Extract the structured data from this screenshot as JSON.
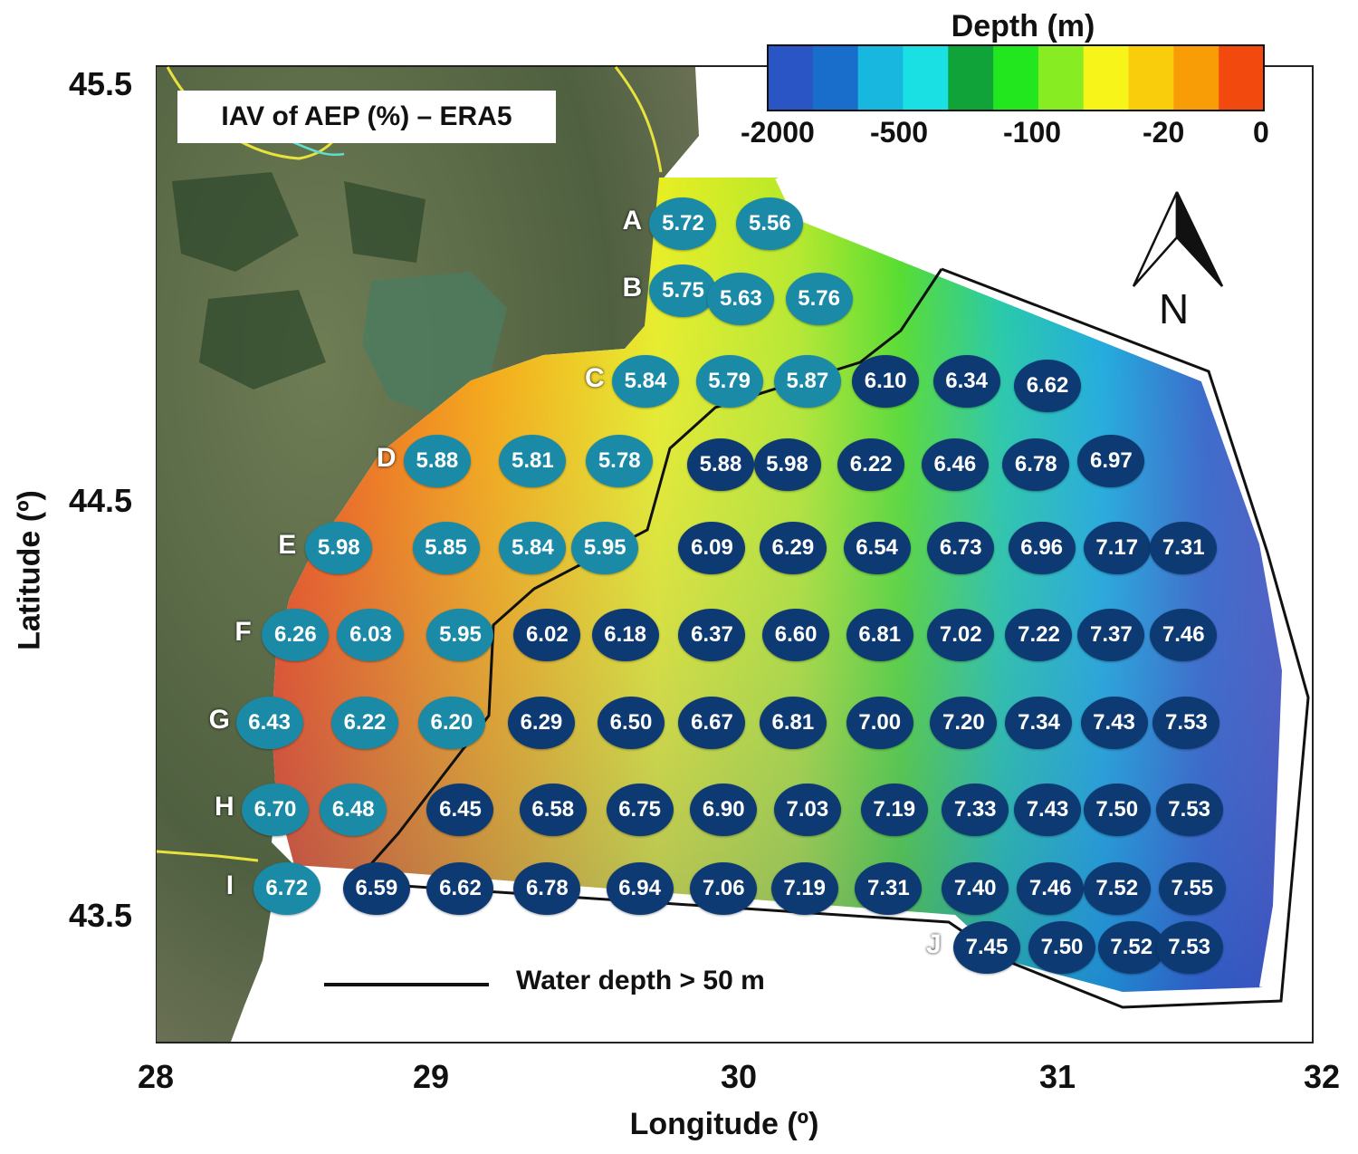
{
  "map": {
    "title": "IAV of AEP (%) – ERA5",
    "xlabel": "Longitude (º)",
    "ylabel": "Latitude (º)",
    "x_ticks": [
      "28",
      "29",
      "30",
      "31",
      "32"
    ],
    "y_ticks": [
      "45.5",
      "44.5",
      "43.5"
    ],
    "north_label": "N",
    "scale_line_label": "Water depth > 50 m"
  },
  "legend": {
    "title": "Depth (m)",
    "labels": [
      "-2000",
      "-500",
      "-100",
      "-20",
      "0"
    ],
    "colors": [
      "#2a55c4",
      "#1a6ecb",
      "#17b7df",
      "#1ae0e4",
      "#0fa33a",
      "#22e61e",
      "#88ec23",
      "#f7f41a",
      "#f9cc0c",
      "#f89d06",
      "#f24a0e"
    ]
  },
  "colors": {
    "shallow_marker": "#1a8aa6",
    "deep_marker": "#0d3a72",
    "land": "#5c6b47",
    "coast_line": "#e8e23c"
  },
  "chart_data": {
    "type": "scatter",
    "title": "IAV of AEP (%) – ERA5",
    "xlabel": "Longitude (º)",
    "ylabel": "Latitude (º)",
    "xlim": [
      28,
      32
    ],
    "ylim": [
      43.2,
      45.5
    ],
    "rows": [
      {
        "label": "A",
        "points": [
          {
            "lon": 29.82,
            "lat": 45.16,
            "value": "5.72",
            "deep": false
          },
          {
            "lon": 30.12,
            "lat": 45.16,
            "value": "5.56",
            "deep": false
          }
        ]
      },
      {
        "label": "B",
        "points": [
          {
            "lon": 29.82,
            "lat": 45.0,
            "value": "5.75",
            "deep": false
          },
          {
            "lon": 30.02,
            "lat": 44.98,
            "value": "5.63",
            "deep": false
          },
          {
            "lon": 30.29,
            "lat": 44.98,
            "value": "5.76",
            "deep": false
          }
        ]
      },
      {
        "label": "C",
        "points": [
          {
            "lon": 29.69,
            "lat": 44.78,
            "value": "5.84",
            "deep": false
          },
          {
            "lon": 29.98,
            "lat": 44.78,
            "value": "5.79",
            "deep": false
          },
          {
            "lon": 30.25,
            "lat": 44.78,
            "value": "5.87",
            "deep": false
          },
          {
            "lon": 30.52,
            "lat": 44.78,
            "value": "6.10",
            "deep": true
          },
          {
            "lon": 30.8,
            "lat": 44.78,
            "value": "6.34",
            "deep": true
          },
          {
            "lon": 31.08,
            "lat": 44.77,
            "value": "6.62",
            "deep": true
          }
        ]
      },
      {
        "label": "D",
        "points": [
          {
            "lon": 28.97,
            "lat": 44.59,
            "value": "5.88",
            "deep": false
          },
          {
            "lon": 29.3,
            "lat": 44.59,
            "value": "5.81",
            "deep": false
          },
          {
            "lon": 29.6,
            "lat": 44.59,
            "value": "5.78",
            "deep": false
          },
          {
            "lon": 29.95,
            "lat": 44.58,
            "value": "5.88",
            "deep": true
          },
          {
            "lon": 30.18,
            "lat": 44.58,
            "value": "5.98",
            "deep": true
          },
          {
            "lon": 30.47,
            "lat": 44.58,
            "value": "6.22",
            "deep": true
          },
          {
            "lon": 30.76,
            "lat": 44.58,
            "value": "6.46",
            "deep": true
          },
          {
            "lon": 31.04,
            "lat": 44.58,
            "value": "6.78",
            "deep": true
          },
          {
            "lon": 31.3,
            "lat": 44.59,
            "value": "6.97",
            "deep": true
          }
        ]
      },
      {
        "label": "E",
        "points": [
          {
            "lon": 28.63,
            "lat": 44.38,
            "value": "5.98",
            "deep": false
          },
          {
            "lon": 29.0,
            "lat": 44.38,
            "value": "5.85",
            "deep": false
          },
          {
            "lon": 29.3,
            "lat": 44.38,
            "value": "5.84",
            "deep": false
          },
          {
            "lon": 29.55,
            "lat": 44.38,
            "value": "5.95",
            "deep": false
          },
          {
            "lon": 29.92,
            "lat": 44.38,
            "value": "6.09",
            "deep": true
          },
          {
            "lon": 30.2,
            "lat": 44.38,
            "value": "6.29",
            "deep": true
          },
          {
            "lon": 30.49,
            "lat": 44.38,
            "value": "6.54",
            "deep": true
          },
          {
            "lon": 30.78,
            "lat": 44.38,
            "value": "6.73",
            "deep": true
          },
          {
            "lon": 31.06,
            "lat": 44.38,
            "value": "6.96",
            "deep": true
          },
          {
            "lon": 31.32,
            "lat": 44.38,
            "value": "7.17",
            "deep": true
          },
          {
            "lon": 31.55,
            "lat": 44.38,
            "value": "7.31",
            "deep": true
          }
        ]
      },
      {
        "label": "F",
        "points": [
          {
            "lon": 28.48,
            "lat": 44.17,
            "value": "6.26",
            "deep": false
          },
          {
            "lon": 28.74,
            "lat": 44.17,
            "value": "6.03",
            "deep": false
          },
          {
            "lon": 29.05,
            "lat": 44.17,
            "value": "5.95",
            "deep": false
          },
          {
            "lon": 29.35,
            "lat": 44.17,
            "value": "6.02",
            "deep": true
          },
          {
            "lon": 29.62,
            "lat": 44.17,
            "value": "6.18",
            "deep": true
          },
          {
            "lon": 29.92,
            "lat": 44.17,
            "value": "6.37",
            "deep": true
          },
          {
            "lon": 30.21,
            "lat": 44.17,
            "value": "6.60",
            "deep": true
          },
          {
            "lon": 30.5,
            "lat": 44.17,
            "value": "6.81",
            "deep": true
          },
          {
            "lon": 30.78,
            "lat": 44.17,
            "value": "7.02",
            "deep": true
          },
          {
            "lon": 31.05,
            "lat": 44.17,
            "value": "7.22",
            "deep": true
          },
          {
            "lon": 31.3,
            "lat": 44.17,
            "value": "7.37",
            "deep": true
          },
          {
            "lon": 31.55,
            "lat": 44.17,
            "value": "7.46",
            "deep": true
          }
        ]
      },
      {
        "label": "G",
        "points": [
          {
            "lon": 28.39,
            "lat": 43.96,
            "value": "6.43",
            "deep": false
          },
          {
            "lon": 28.72,
            "lat": 43.96,
            "value": "6.22",
            "deep": false
          },
          {
            "lon": 29.02,
            "lat": 43.96,
            "value": "6.20",
            "deep": false
          },
          {
            "lon": 29.33,
            "lat": 43.96,
            "value": "6.29",
            "deep": true
          },
          {
            "lon": 29.64,
            "lat": 43.96,
            "value": "6.50",
            "deep": true
          },
          {
            "lon": 29.92,
            "lat": 43.96,
            "value": "6.67",
            "deep": true
          },
          {
            "lon": 30.2,
            "lat": 43.96,
            "value": "6.81",
            "deep": true
          },
          {
            "lon": 30.5,
            "lat": 43.96,
            "value": "7.00",
            "deep": true
          },
          {
            "lon": 30.79,
            "lat": 43.96,
            "value": "7.20",
            "deep": true
          },
          {
            "lon": 31.05,
            "lat": 43.96,
            "value": "7.34",
            "deep": true
          },
          {
            "lon": 31.31,
            "lat": 43.96,
            "value": "7.43",
            "deep": true
          },
          {
            "lon": 31.56,
            "lat": 43.96,
            "value": "7.53",
            "deep": true
          }
        ]
      },
      {
        "label": "H",
        "points": [
          {
            "lon": 28.41,
            "lat": 43.75,
            "value": "6.70",
            "deep": false
          },
          {
            "lon": 28.68,
            "lat": 43.75,
            "value": "6.48",
            "deep": false
          },
          {
            "lon": 29.05,
            "lat": 43.75,
            "value": "6.45",
            "deep": true
          },
          {
            "lon": 29.37,
            "lat": 43.75,
            "value": "6.58",
            "deep": true
          },
          {
            "lon": 29.67,
            "lat": 43.75,
            "value": "6.75",
            "deep": true
          },
          {
            "lon": 29.96,
            "lat": 43.75,
            "value": "6.90",
            "deep": true
          },
          {
            "lon": 30.25,
            "lat": 43.75,
            "value": "7.03",
            "deep": true
          },
          {
            "lon": 30.55,
            "lat": 43.75,
            "value": "7.19",
            "deep": true
          },
          {
            "lon": 30.83,
            "lat": 43.75,
            "value": "7.33",
            "deep": true
          },
          {
            "lon": 31.08,
            "lat": 43.75,
            "value": "7.43",
            "deep": true
          },
          {
            "lon": 31.32,
            "lat": 43.75,
            "value": "7.50",
            "deep": true
          },
          {
            "lon": 31.57,
            "lat": 43.75,
            "value": "7.53",
            "deep": true
          }
        ]
      },
      {
        "label": "I",
        "points": [
          {
            "lon": 28.45,
            "lat": 43.56,
            "value": "6.72",
            "deep": false
          },
          {
            "lon": 28.76,
            "lat": 43.56,
            "value": "6.59",
            "deep": true
          },
          {
            "lon": 29.05,
            "lat": 43.56,
            "value": "6.62",
            "deep": true
          },
          {
            "lon": 29.35,
            "lat": 43.56,
            "value": "6.78",
            "deep": true
          },
          {
            "lon": 29.67,
            "lat": 43.56,
            "value": "6.94",
            "deep": true
          },
          {
            "lon": 29.96,
            "lat": 43.56,
            "value": "7.06",
            "deep": true
          },
          {
            "lon": 30.24,
            "lat": 43.56,
            "value": "7.19",
            "deep": true
          },
          {
            "lon": 30.53,
            "lat": 43.56,
            "value": "7.31",
            "deep": true
          },
          {
            "lon": 30.83,
            "lat": 43.56,
            "value": "7.40",
            "deep": true
          },
          {
            "lon": 31.09,
            "lat": 43.56,
            "value": "7.46",
            "deep": true
          },
          {
            "lon": 31.32,
            "lat": 43.56,
            "value": "7.52",
            "deep": true
          },
          {
            "lon": 31.58,
            "lat": 43.56,
            "value": "7.55",
            "deep": true
          }
        ]
      },
      {
        "label": "J",
        "points": [
          {
            "lon": 30.87,
            "lat": 43.42,
            "value": "7.45",
            "deep": true
          },
          {
            "lon": 31.13,
            "lat": 43.42,
            "value": "7.50",
            "deep": true
          },
          {
            "lon": 31.37,
            "lat": 43.42,
            "value": "7.52",
            "deep": true
          },
          {
            "lon": 31.57,
            "lat": 43.42,
            "value": "7.53",
            "deep": true
          }
        ]
      }
    ]
  }
}
